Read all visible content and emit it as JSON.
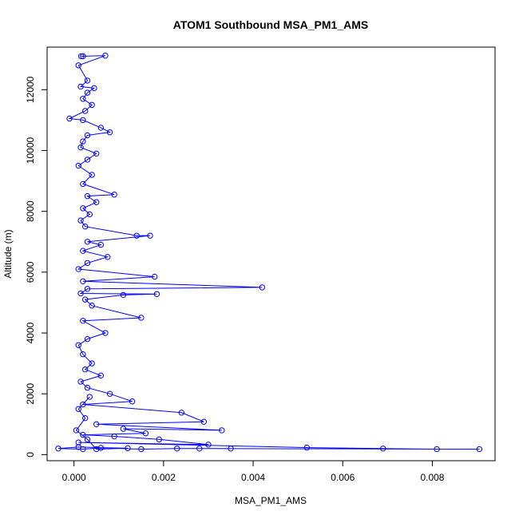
{
  "chart_data": {
    "type": "line",
    "title": "ATOM1 Southbound MSA_PM1_AMS",
    "xlabel": "MSA_PM1_AMS",
    "ylabel": "Altitude (m)",
    "xlim": [
      -0.0006,
      0.0094
    ],
    "ylim": [
      -200,
      13400
    ],
    "xticks": [
      0.0,
      0.002,
      0.004,
      0.006,
      0.008
    ],
    "xtick_labels": [
      "0.000",
      "0.002",
      "0.004",
      "0.006",
      "0.008"
    ],
    "yticks": [
      0,
      2000,
      4000,
      6000,
      8000,
      10000,
      12000
    ],
    "ytick_labels": [
      "0",
      "2000",
      "4000",
      "6000",
      "8000",
      "10000",
      "12000"
    ],
    "grid": false,
    "series": [
      {
        "color": "#0000ff",
        "marker": "open-circle",
        "points": [
          [
            0.00016,
            13100
          ],
          [
            0.0002,
            13100
          ],
          [
            0.0007,
            13120
          ],
          [
            0.0001,
            12800
          ],
          [
            0.0003,
            12300
          ],
          [
            0.00015,
            12100
          ],
          [
            0.00045,
            12050
          ],
          [
            0.0003,
            11900
          ],
          [
            0.0002,
            11700
          ],
          [
            0.0004,
            11500
          ],
          [
            0.00025,
            11300
          ],
          [
            -0.0001,
            11050
          ],
          [
            0.0002,
            11000
          ],
          [
            0.0006,
            10750
          ],
          [
            0.0008,
            10600
          ],
          [
            0.0003,
            10500
          ],
          [
            0.0002,
            10300
          ],
          [
            0.00015,
            10100
          ],
          [
            0.0005,
            9900
          ],
          [
            0.0003,
            9700
          ],
          [
            0.0001,
            9500
          ],
          [
            0.0004,
            9200
          ],
          [
            0.0002,
            8900
          ],
          [
            0.0009,
            8550
          ],
          [
            0.0003,
            8500
          ],
          [
            0.0005,
            8300
          ],
          [
            0.0002,
            8100
          ],
          [
            0.00035,
            7900
          ],
          [
            0.00015,
            7700
          ],
          [
            0.00025,
            7500
          ],
          [
            0.0014,
            7200
          ],
          [
            0.0017,
            7200
          ],
          [
            0.0003,
            7000
          ],
          [
            0.0006,
            6900
          ],
          [
            0.0002,
            6700
          ],
          [
            0.00075,
            6500
          ],
          [
            0.0003,
            6300
          ],
          [
            0.0001,
            6100
          ],
          [
            0.0018,
            5850
          ],
          [
            0.0002,
            5700
          ],
          [
            0.0042,
            5500
          ],
          [
            0.0003,
            5450
          ],
          [
            0.00015,
            5300
          ],
          [
            0.00185,
            5280
          ],
          [
            0.0011,
            5250
          ],
          [
            0.00025,
            5100
          ],
          [
            0.0004,
            4900
          ],
          [
            0.0015,
            4500
          ],
          [
            0.0002,
            4400
          ],
          [
            0.0007,
            4000
          ],
          [
            0.0003,
            3800
          ],
          [
            0.0001,
            3600
          ],
          [
            0.0002,
            3300
          ],
          [
            0.0004,
            3000
          ],
          [
            0.00025,
            2800
          ],
          [
            0.0006,
            2600
          ],
          [
            0.00015,
            2400
          ],
          [
            0.0003,
            2200
          ],
          [
            0.0008,
            2000
          ],
          [
            0.0013,
            1750
          ],
          [
            0.0002,
            1650
          ],
          [
            0.0024,
            1380
          ],
          [
            0.0029,
            1080
          ],
          [
            0.0005,
            1000
          ],
          [
            0.0033,
            800
          ],
          [
            0.0011,
            850
          ],
          [
            0.0016,
            700
          ],
          [
            0.0002,
            650
          ],
          [
            0.0009,
            600
          ],
          [
            0.0019,
            500
          ],
          [
            0.003,
            330
          ],
          [
            0.0001,
            400
          ],
          [
            0.0052,
            230
          ],
          [
            0.0069,
            200
          ],
          [
            0.0081,
            180
          ],
          [
            0.00905,
            180
          ],
          [
            0.0028,
            200
          ],
          [
            0.0035,
            200
          ],
          [
            0.0023,
            200
          ],
          [
            0.0015,
            180
          ],
          [
            0.0006,
            220
          ],
          [
            0.0002,
            180
          ],
          [
            -0.00035,
            200
          ],
          [
            0.0001,
            250
          ],
          [
            0.0012,
            210
          ],
          [
            0.0005,
            180
          ],
          [
            0.0003,
            500
          ],
          [
            5e-05,
            800
          ],
          [
            0.00025,
            1200
          ],
          [
            0.0001,
            1500
          ],
          [
            0.00035,
            1900
          ]
        ]
      }
    ]
  }
}
